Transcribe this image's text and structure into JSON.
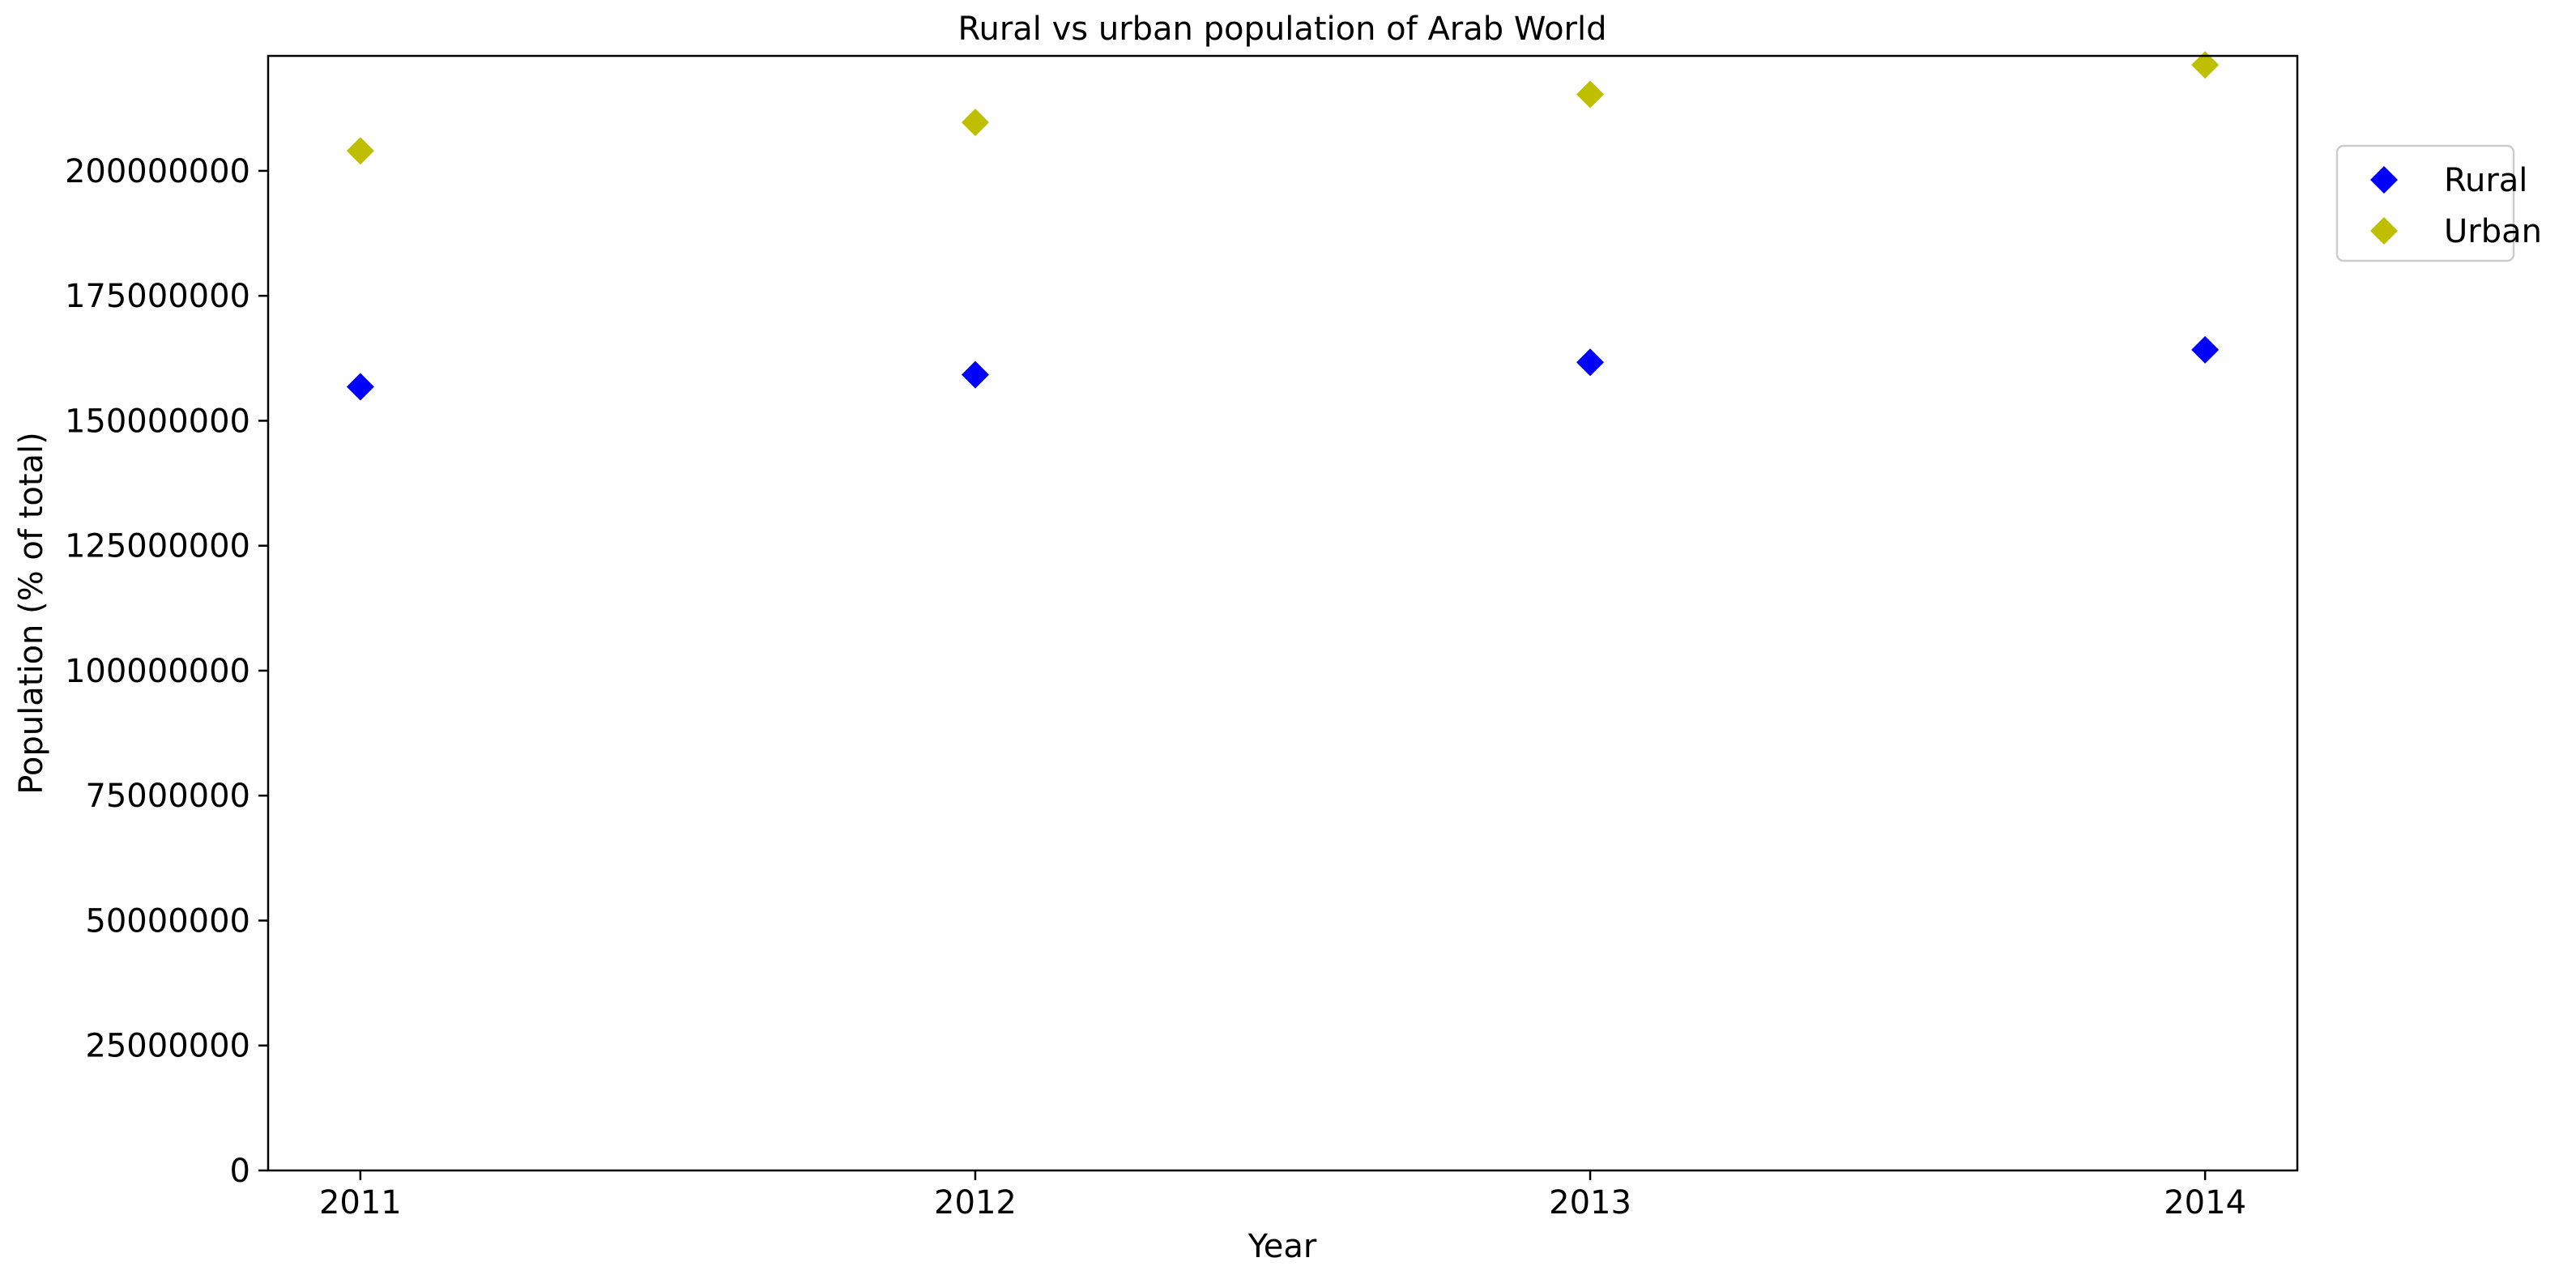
{
  "chart_data": {
    "type": "scatter",
    "title": "Rural vs urban population of Arab World",
    "xlabel": "Year",
    "ylabel": "Population (% of total)",
    "x": [
      2011,
      2012,
      2013,
      2014
    ],
    "x_tick_labels": [
      "2011",
      "2012",
      "2013",
      "2014"
    ],
    "xlim": [
      2010.85,
      2014.15
    ],
    "ylim": [
      0,
      223000000
    ],
    "y_ticks": [
      0,
      25000000,
      50000000,
      75000000,
      100000000,
      125000000,
      150000000,
      175000000,
      200000000
    ],
    "y_tick_labels": [
      "0",
      "25000000",
      "50000000",
      "75000000",
      "100000000",
      "125000000",
      "150000000",
      "175000000",
      "200000000"
    ],
    "grid": false,
    "legend_position": "upper right, outside plot",
    "marker": "diamond",
    "series": [
      {
        "name": "Rural",
        "color": "#0000ff",
        "values": [
          156800000,
          159200000,
          161700000,
          164200000
        ]
      },
      {
        "name": "Urban",
        "color": "#bfbf00",
        "values": [
          204000000,
          209700000,
          215300000,
          221200000
        ]
      }
    ]
  }
}
